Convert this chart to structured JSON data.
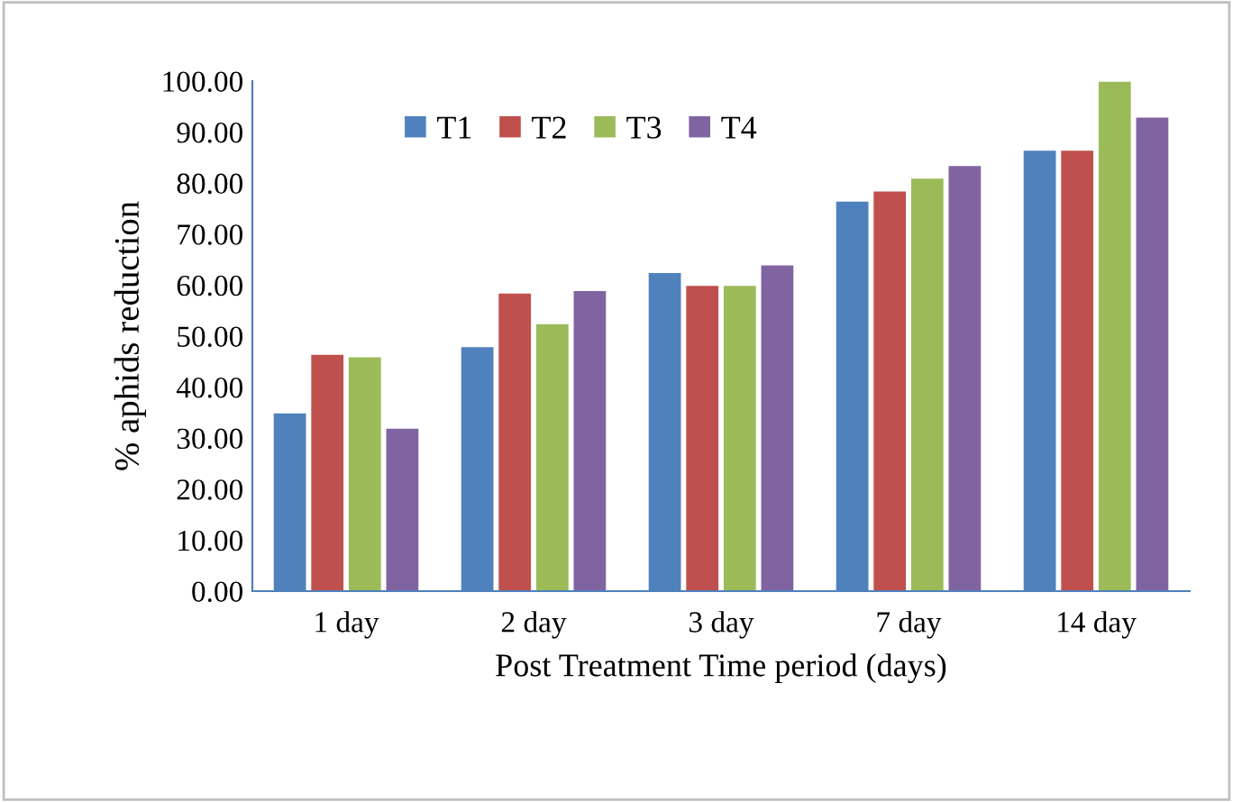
{
  "chart_data": {
    "type": "bar",
    "xlabel": "Post Treatment Time period (days)",
    "ylabel": "% aphids reduction",
    "categories": [
      "1 day",
      "2 day",
      "3 day",
      "7 day",
      "14 day"
    ],
    "series": [
      {
        "name": "T1",
        "color": "#4f81bd",
        "values": [
          35,
          48,
          62.5,
          76.5,
          86.5
        ]
      },
      {
        "name": "T2",
        "color": "#c0504d",
        "values": [
          46.5,
          58.5,
          60,
          78.5,
          86.5
        ]
      },
      {
        "name": "T3",
        "color": "#9bbb59",
        "values": [
          46,
          52.5,
          60,
          81,
          100
        ]
      },
      {
        "name": "T4",
        "color": "#8064a2",
        "values": [
          32,
          59,
          64,
          83.5,
          93
        ]
      }
    ],
    "ylim": [
      0,
      100
    ],
    "yticks": [
      {
        "value": 0,
        "label": "0.00"
      },
      {
        "value": 10,
        "label": "10.00"
      },
      {
        "value": 20,
        "label": "20.00"
      },
      {
        "value": 30,
        "label": "30.00"
      },
      {
        "value": 40,
        "label": "40.00"
      },
      {
        "value": 50,
        "label": "50.00"
      },
      {
        "value": 60,
        "label": "60.00"
      },
      {
        "value": 70,
        "label": "70.00"
      },
      {
        "value": 80,
        "label": "80.00"
      },
      {
        "value": 90,
        "label": "90.00"
      },
      {
        "value": 100,
        "label": "100.00"
      }
    ],
    "grid": false,
    "legend": "top"
  }
}
